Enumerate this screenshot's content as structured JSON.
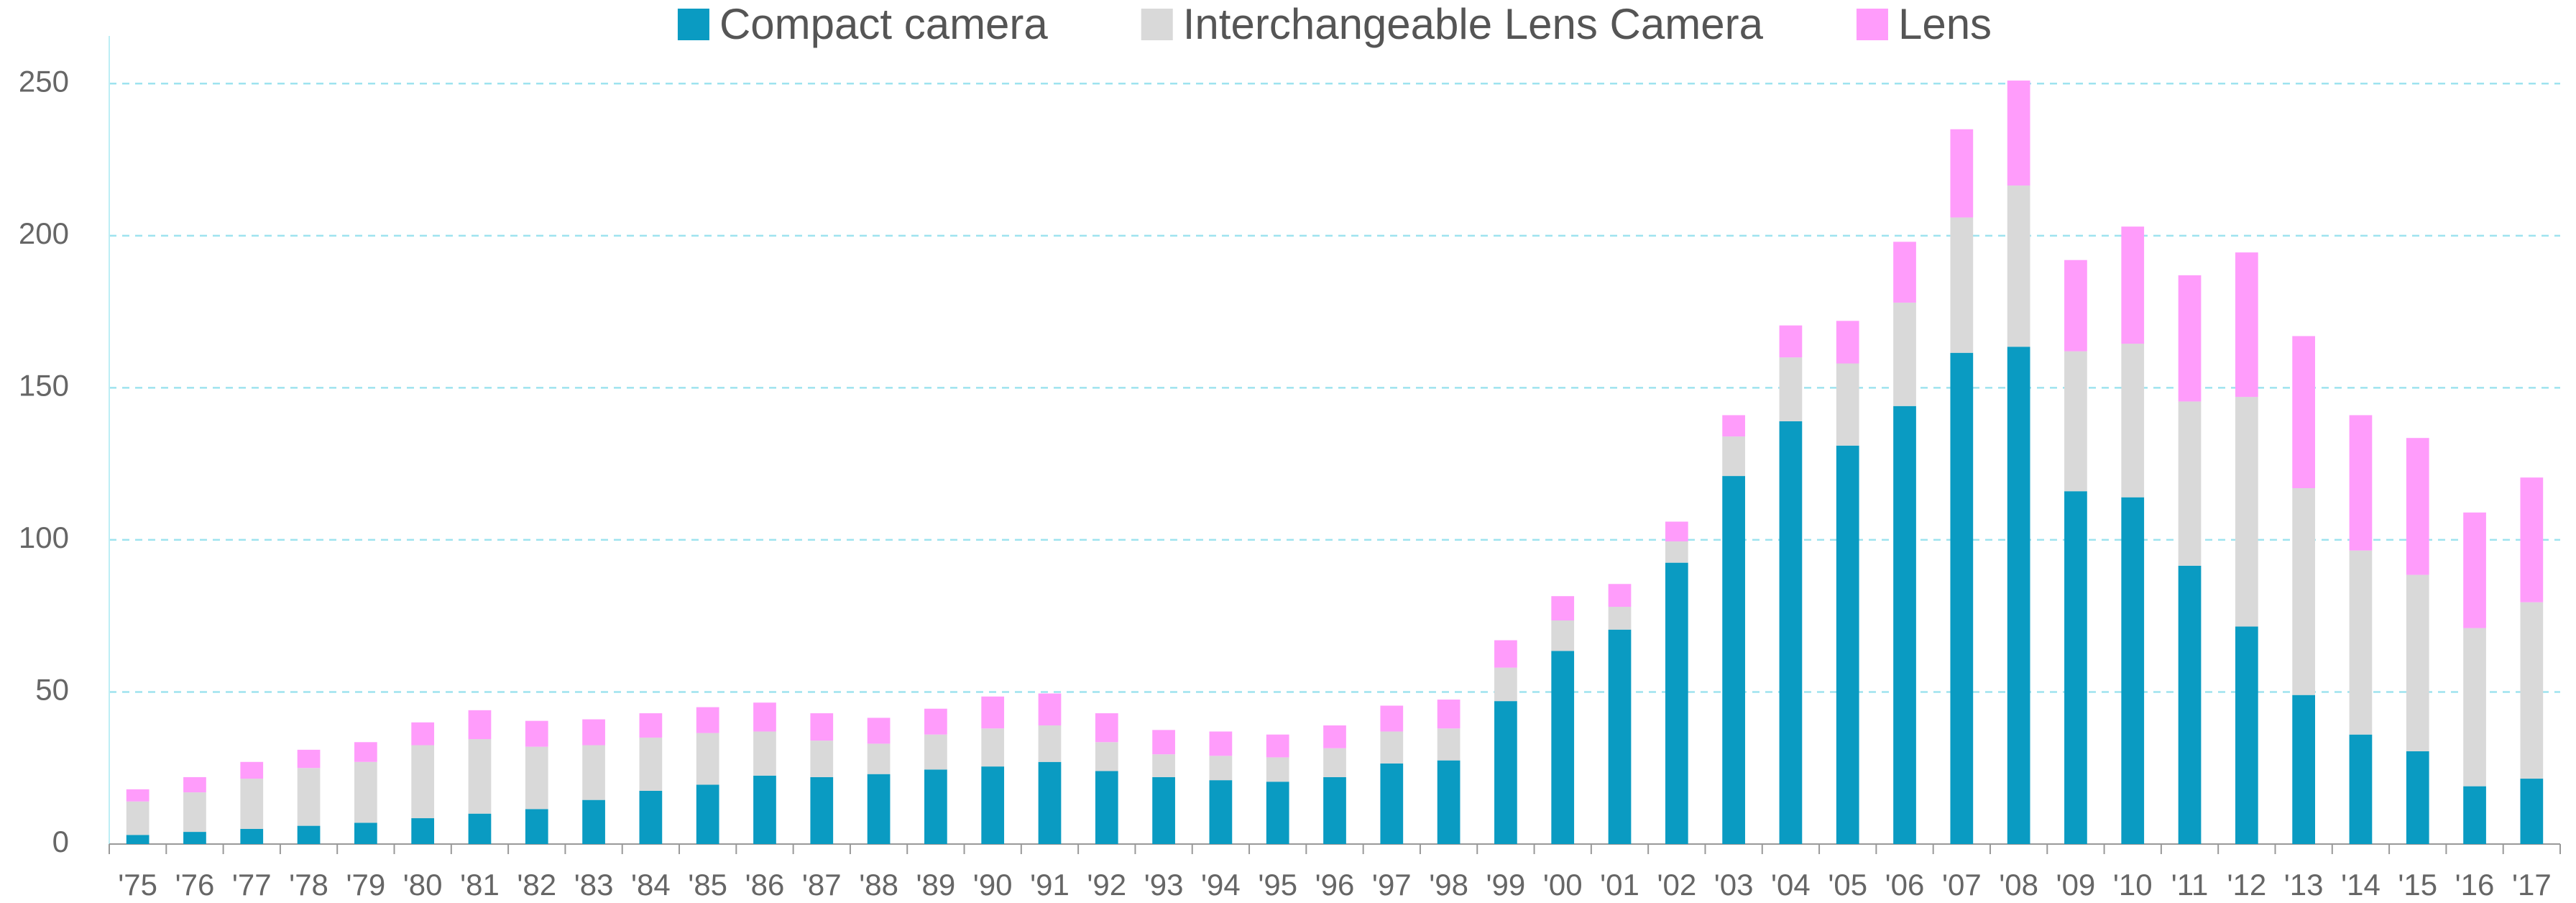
{
  "chart_data": {
    "type": "stacked_bar",
    "categories": [
      "'75",
      "'76",
      "'77",
      "'78",
      "'79",
      "'80",
      "'81",
      "'82",
      "'83",
      "'84",
      "'85",
      "'86",
      "'87",
      "'88",
      "'89",
      "'90",
      "'91",
      "'92",
      "'93",
      "'94",
      "'95",
      "'96",
      "'97",
      "'98",
      "'99",
      "'00",
      "'01",
      "'02",
      "'03",
      "'04",
      "'05",
      "'06",
      "'07",
      "'08",
      "'09",
      "'10",
      "'11",
      "'12",
      "'13",
      "'14",
      "'15",
      "'16",
      "'17"
    ],
    "series": [
      {
        "name": "Compact camera",
        "color": "#0a9bc2",
        "values": [
          3,
          4,
          5,
          6,
          7,
          8.5,
          10,
          11.5,
          14.5,
          17.5,
          19.5,
          22.5,
          22,
          23,
          24.5,
          25.5,
          27,
          24,
          22,
          21,
          20.5,
          22,
          26.5,
          27.5,
          47,
          63.5,
          70.5,
          92.5,
          121,
          139,
          131,
          144,
          161.5,
          163.5,
          116,
          114,
          91.5,
          71.5,
          49,
          36,
          30.5,
          19,
          21.5
        ]
      },
      {
        "name": "Interchangeable Lens Camera",
        "color": "#d9d9d9",
        "values": [
          11,
          13,
          16.5,
          19,
          20,
          24,
          24.5,
          20.5,
          18,
          17.5,
          17,
          14.5,
          12,
          10,
          11.5,
          12.5,
          12,
          9.5,
          7.5,
          8,
          8,
          9.5,
          10.5,
          10.5,
          11,
          10,
          7.5,
          7,
          13,
          21,
          27,
          34,
          44.5,
          53,
          46,
          50.5,
          54,
          75.5,
          68,
          60.5,
          58,
          52,
          58
        ]
      },
      {
        "name": "Lens",
        "color": "#ff9cfb",
        "values": [
          4,
          5,
          5.5,
          6,
          6.5,
          7.5,
          9.5,
          8.5,
          8.5,
          8,
          8.5,
          9.5,
          9,
          8.5,
          8.5,
          10.5,
          10.5,
          9.5,
          8,
          8,
          7.5,
          7.5,
          8.5,
          9.5,
          9,
          8,
          7.5,
          6.5,
          7,
          10.5,
          14,
          20,
          29,
          34.5,
          30,
          38.5,
          41.5,
          47.5,
          50,
          44.5,
          45,
          38,
          41
        ]
      }
    ],
    "ylim": [
      0,
      260
    ],
    "yticks": [
      0,
      50,
      100,
      150,
      200,
      250
    ],
    "grid": true,
    "legend": "top"
  }
}
